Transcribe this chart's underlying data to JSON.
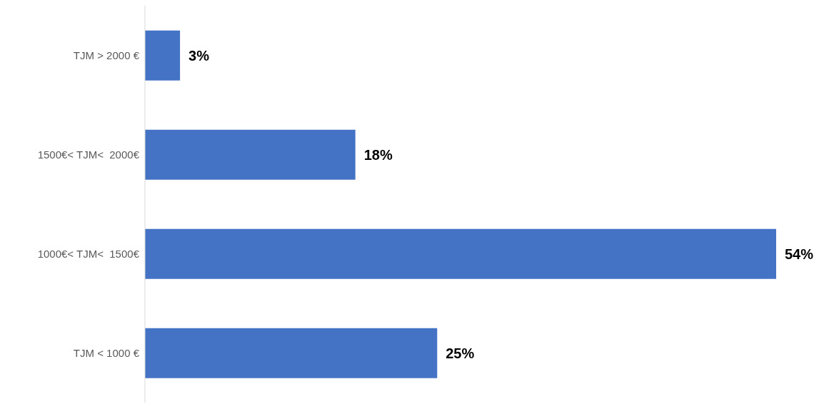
{
  "chart_data": {
    "type": "bar",
    "orientation": "horizontal",
    "categories": [
      "TJM > 2000 €",
      "1500€< TJM<  2000€",
      "1000€< TJM<  1500€",
      "TJM < 1000 €"
    ],
    "values": [
      3,
      18,
      54,
      25
    ],
    "value_labels": [
      "3%",
      "18%",
      "54%",
      "25%"
    ],
    "color": "#4472c4"
  }
}
